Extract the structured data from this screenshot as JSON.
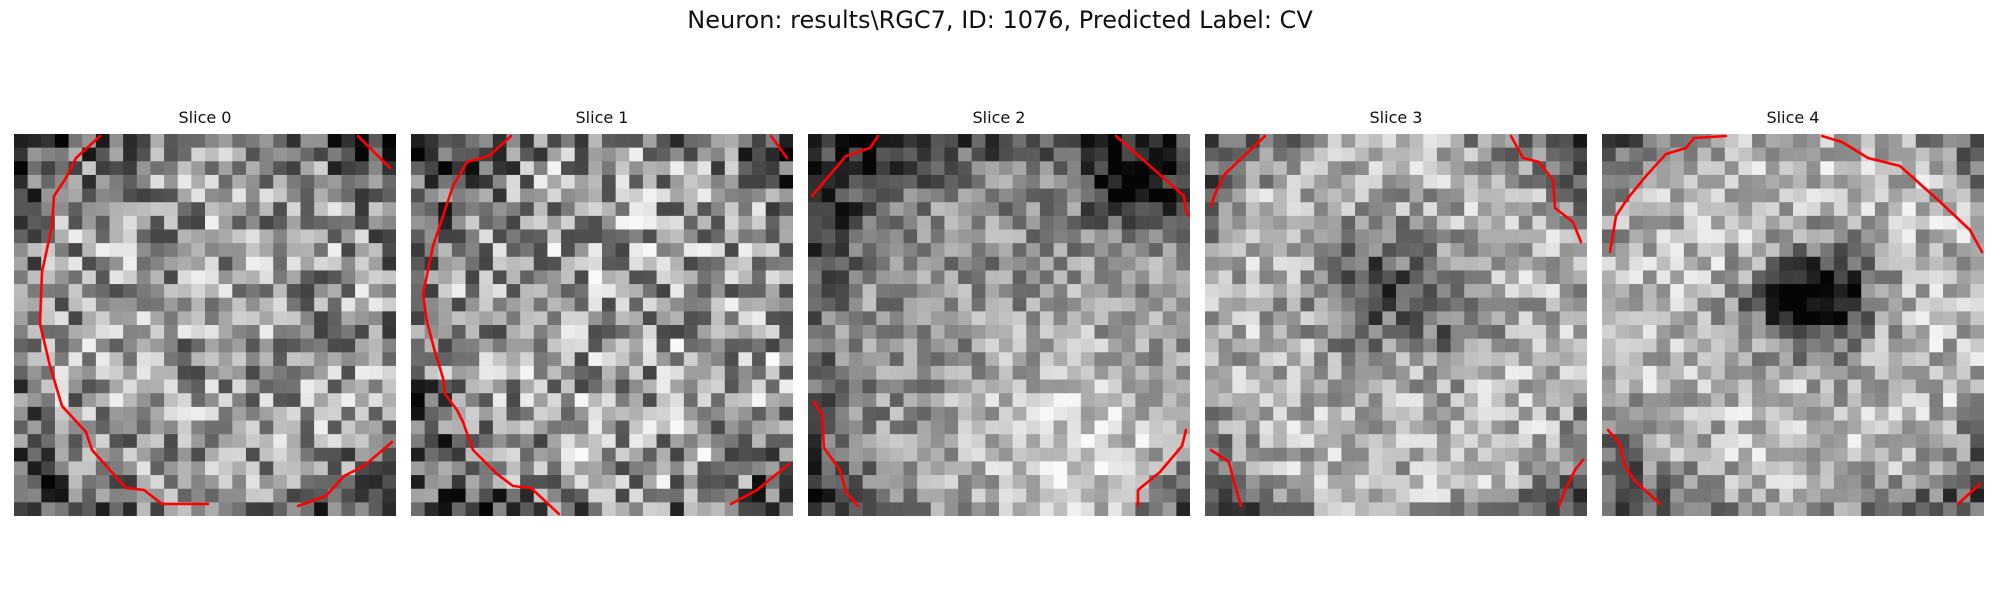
{
  "figure": {
    "title": "Neuron: results\\RGC7, ID: 1076, Predicted Label: CV",
    "contour_color": "#ff0000",
    "colormap": "gray"
  },
  "slices": [
    {
      "label": "Slice 0"
    },
    {
      "label": "Slice 1"
    },
    {
      "label": "Slice 2"
    },
    {
      "label": "Slice 3"
    },
    {
      "label": "Slice 4"
    }
  ]
}
